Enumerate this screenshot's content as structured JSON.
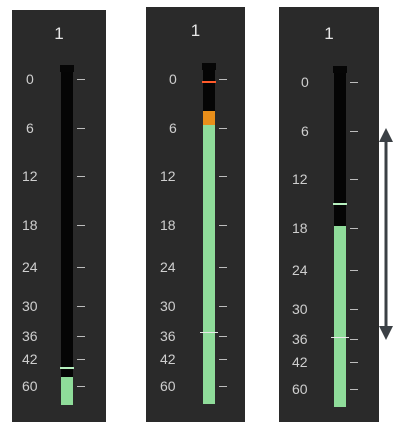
{
  "meters": [
    {
      "channel_label": "1",
      "scale_labels": [
        "0",
        "6",
        "12",
        "18",
        "24",
        "30",
        "36",
        "42",
        "60"
      ],
      "level_fill_fraction": 0.09,
      "peak_hold": "42–60"
    },
    {
      "channel_label": "1",
      "scale_labels": [
        "0",
        "6",
        "12",
        "18",
        "24",
        "30",
        "36",
        "42",
        "60"
      ],
      "level_fill_fraction": 0.9,
      "peak_hold": "6",
      "clip_warning": "0"
    },
    {
      "channel_label": "1",
      "scale_labels": [
        "0",
        "6",
        "12",
        "18",
        "24",
        "30",
        "36",
        "42",
        "60"
      ],
      "level_fill_fraction": 0.58,
      "peak_hold": "18",
      "adjustable": true
    }
  ],
  "colors": {
    "panel_background": "#2a2a2a",
    "meter_green": "#8fdc9a",
    "meter_orange": "#e98f1a",
    "meter_red": "#ff5a2a",
    "scale_text": "#cfcfcf"
  }
}
